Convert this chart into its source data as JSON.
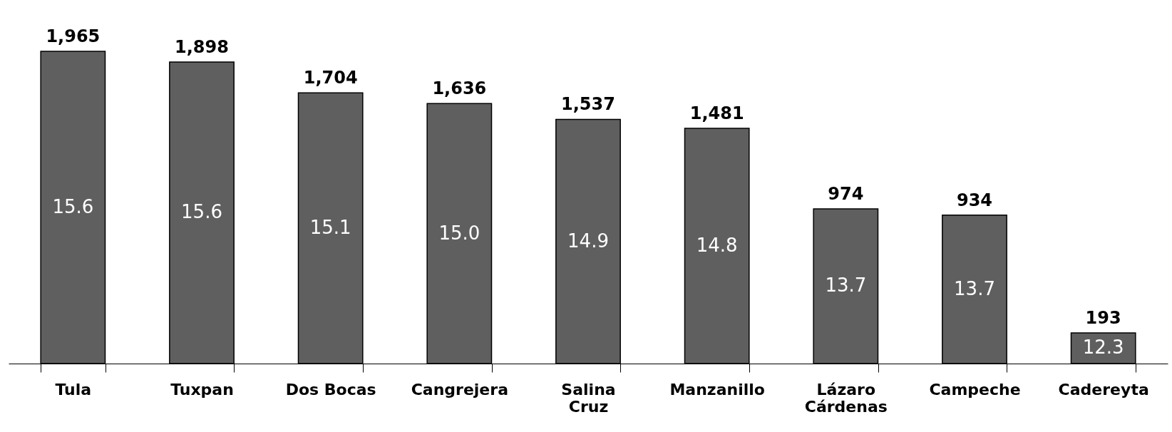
{
  "chart_data": {
    "type": "bar",
    "categories": [
      "Tula",
      "Tuxpan",
      "Dos Bocas",
      "Cangrejera",
      "Salina Cruz",
      "Manzanillo",
      "Lázaro Cárdenas",
      "Campeche",
      "Cadereyta"
    ],
    "values": [
      1965,
      1898,
      1704,
      1636,
      1537,
      1481,
      974,
      934,
      193
    ],
    "value_labels": [
      "1,965",
      "1,898",
      "1,704",
      "1,636",
      "1,537",
      "1,481",
      "974",
      "934",
      "193"
    ],
    "color": "#5f5f5f",
    "annotations": [
      "15.6",
      "15.6",
      "15.1",
      "15.0",
      "14.9",
      "14.8",
      "13.7",
      "13.7",
      "12.3"
    ]
  }
}
